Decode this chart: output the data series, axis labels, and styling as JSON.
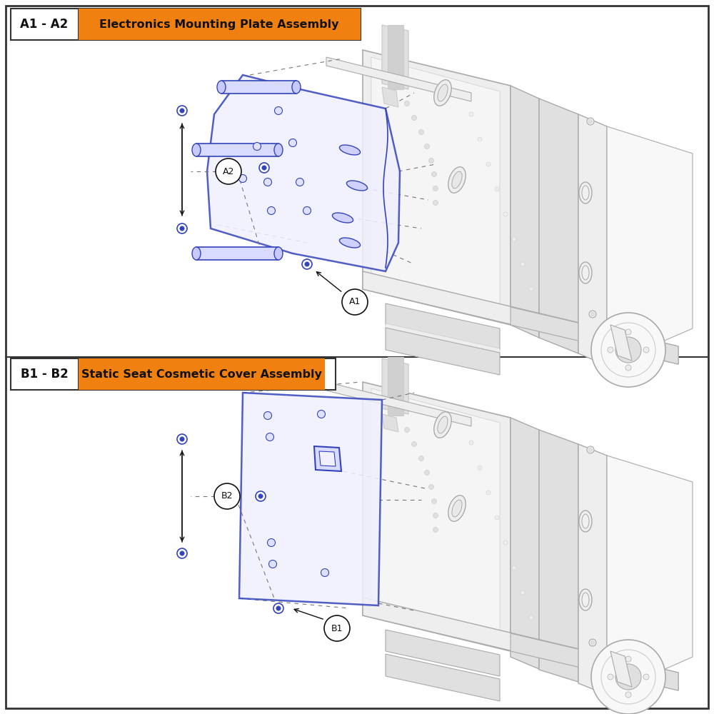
{
  "panel_a_label": "A1 - A2",
  "panel_a_title": "Electronics Mounting Plate Assembly",
  "panel_b_label": "B1 - B2",
  "panel_b_title": "Static Seat Cosmetic Cover Assembly",
  "orange_bg": "#F08010",
  "blue": "#3344BB",
  "blue_light": "#8899DD",
  "gray1": "#AAAAAA",
  "gray2": "#CCCCCC",
  "gray3": "#EEEEEE",
  "gray4": "#E0E0E0",
  "gray5": "#D0D0D0",
  "dgray": "#777777",
  "border": "#333333",
  "black": "#111111",
  "white": "#FFFFFF",
  "label_a1": "A1",
  "label_a2": "A2",
  "label_b1": "B1",
  "label_b2": "B2"
}
